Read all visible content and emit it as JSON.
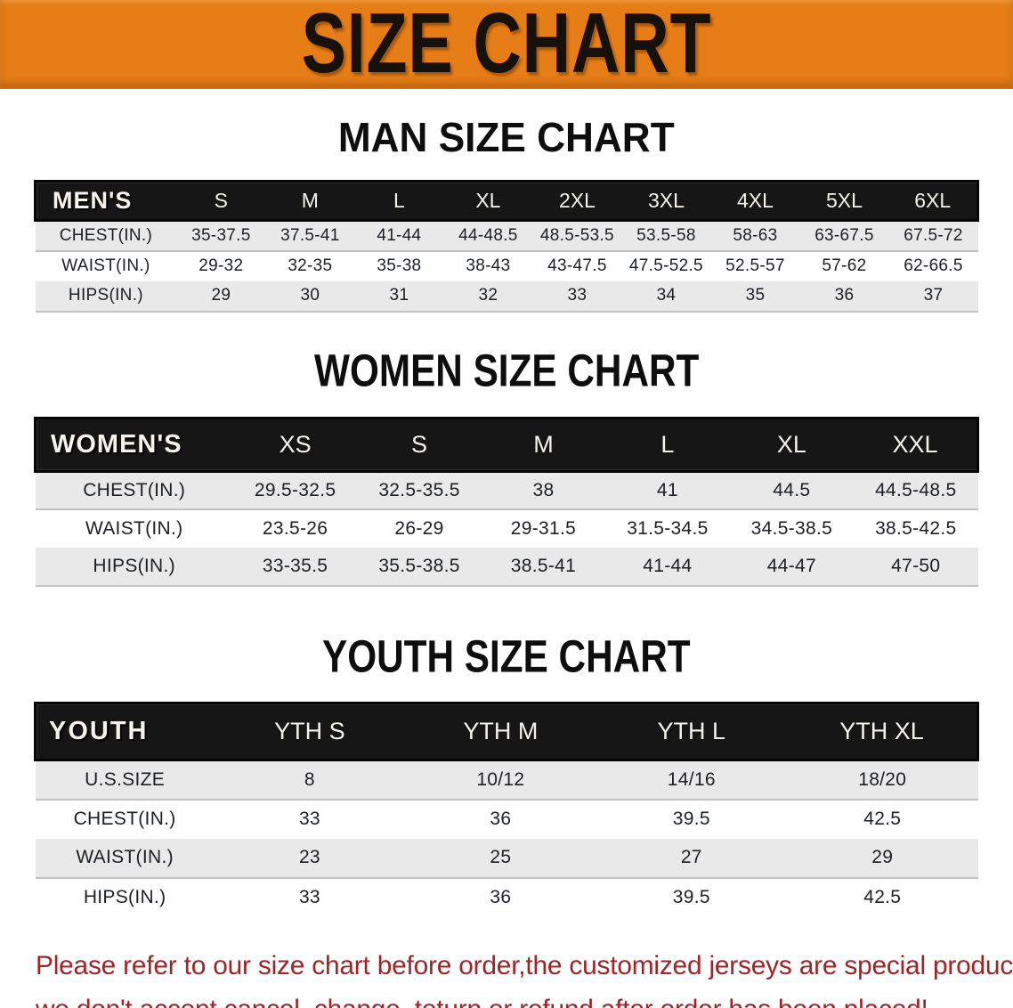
{
  "banner": {
    "title": "SIZE CHART",
    "bg_color": "#e67d17",
    "text_color": "#17110c"
  },
  "colors": {
    "header_band": "#161616",
    "stripe_row": "#e9e9e9",
    "disclaimer_red": "#9e2427"
  },
  "sections": [
    {
      "heading": "MAN SIZE CHART",
      "table": {
        "label": "MEN'S",
        "columns": [
          "S",
          "M",
          "L",
          "XL",
          "2XL",
          "3XL",
          "4XL",
          "5XL",
          "6XL"
        ],
        "rows": [
          {
            "label": "CHEST(IN.)",
            "values": [
              "35-37.5",
              "37.5-41",
              "41-44",
              "44-48.5",
              "48.5-53.5",
              "53.5-58",
              "58-63",
              "63-67.5",
              "67.5-72"
            ]
          },
          {
            "label": "WAIST(IN.)",
            "values": [
              "29-32",
              "32-35",
              "35-38",
              "38-43",
              "43-47.5",
              "47.5-52.5",
              "52.5-57",
              "57-62",
              "62-66.5"
            ]
          },
          {
            "label": "HIPS(IN.)",
            "values": [
              "29",
              "30",
              "31",
              "32",
              "33",
              "34",
              "35",
              "36",
              "37"
            ]
          }
        ]
      }
    },
    {
      "heading": "WOMEN SIZE CHART",
      "table": {
        "label": "WOMEN'S",
        "columns": [
          "XS",
          "S",
          "M",
          "L",
          "XL",
          "XXL"
        ],
        "rows": [
          {
            "label": "CHEST(IN.)",
            "values": [
              "29.5-32.5",
              "32.5-35.5",
              "38",
              "41",
              "44.5",
              "44.5-48.5"
            ]
          },
          {
            "label": "WAIST(IN.)",
            "values": [
              "23.5-26",
              "26-29",
              "29-31.5",
              "31.5-34.5",
              "34.5-38.5",
              "38.5-42.5"
            ]
          },
          {
            "label": "HIPS(IN.)",
            "values": [
              "33-35.5",
              "35.5-38.5",
              "38.5-41",
              "41-44",
              "44-47",
              "47-50"
            ]
          }
        ]
      }
    },
    {
      "heading": "YOUTH SIZE CHART",
      "table": {
        "label": "YOUTH",
        "columns": [
          "YTH S",
          "YTH M",
          "YTH L",
          "YTH XL"
        ],
        "rows": [
          {
            "label": "U.S.SIZE",
            "values": [
              "8",
              "10/12",
              "14/16",
              "18/20"
            ]
          },
          {
            "label": "CHEST(IN.)",
            "values": [
              "33",
              "36",
              "39.5",
              "42.5"
            ]
          },
          {
            "label": "WAIST(IN.)",
            "values": [
              "23",
              "25",
              "27",
              "29"
            ]
          },
          {
            "label": "HIPS(IN.)",
            "values": [
              "33",
              "36",
              "39.5",
              "42.5"
            ]
          }
        ]
      }
    }
  ],
  "disclaimer": {
    "line1": "Please refer to our size chart before order,the customized jerseys are special products,",
    "line2": "we don't accept cancel, change, teturn or refund after order has been placed!"
  }
}
